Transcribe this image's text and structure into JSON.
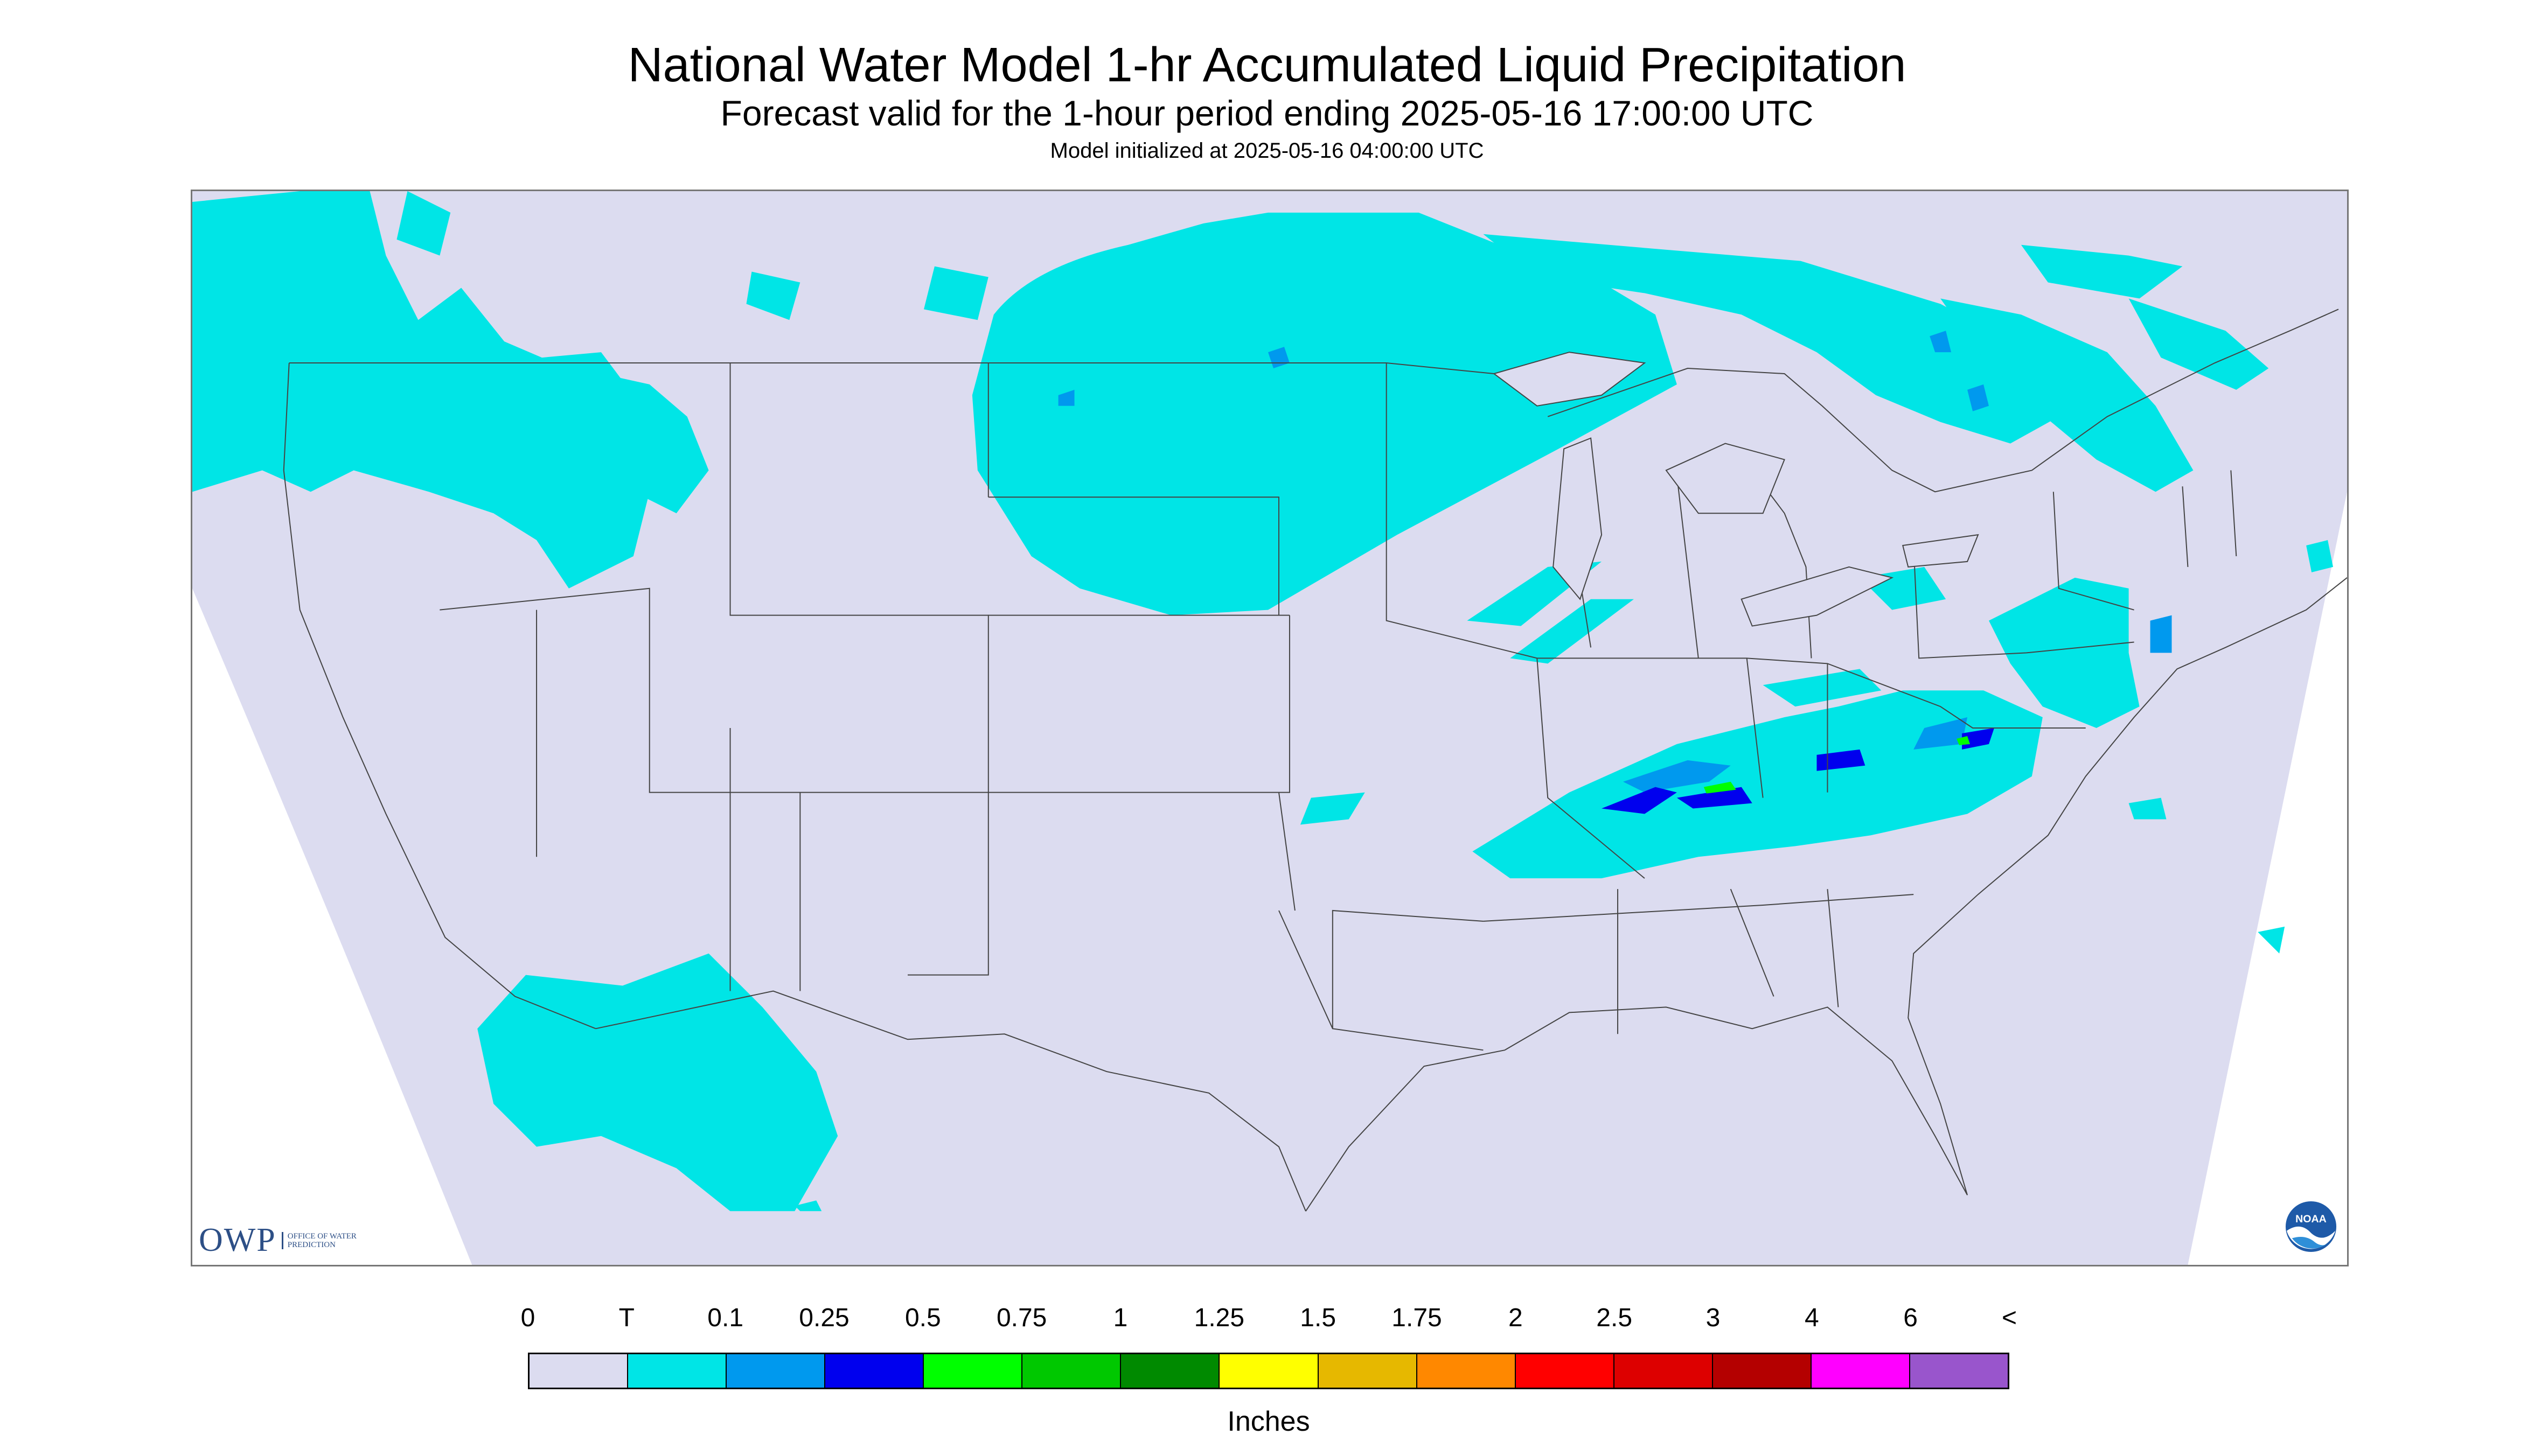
{
  "title": "National Water Model 1-hr Accumulated Liquid Precipitation",
  "subtitle": "Forecast valid for the 1-hour period ending 2025-05-16 17:00:00 UTC",
  "init_line": "Model initialized at 2025-05-16 04:00:00 UTC",
  "logos": {
    "owp_mark": "OWP",
    "owp_text": "Office of Water Prediction",
    "noaa": "NOAA"
  },
  "legend": {
    "tick_labels": [
      "0",
      "T",
      "0.1",
      "0.25",
      "0.5",
      "0.75",
      "1",
      "1.25",
      "1.5",
      "1.75",
      "2",
      "2.5",
      "3",
      "4",
      "6",
      "<"
    ],
    "colors": [
      "#dcdcf0",
      "#00e5e6",
      "#0099ee",
      "#0000ee",
      "#00ff00",
      "#00c800",
      "#008a00",
      "#ffff00",
      "#e6b800",
      "#ff8800",
      "#ff0000",
      "#dd0000",
      "#b40000",
      "#ff00ff",
      "#9955cc"
    ],
    "unit_label": "Inches"
  },
  "map": {
    "projection_fill": "#dcdcf0",
    "outside_fill": "#ffffff",
    "precip_colors": {
      "trace": "#00e5e6",
      "light": "#0099ee",
      "moderate": "#0000ee",
      "heavy": "#00ff00"
    }
  }
}
